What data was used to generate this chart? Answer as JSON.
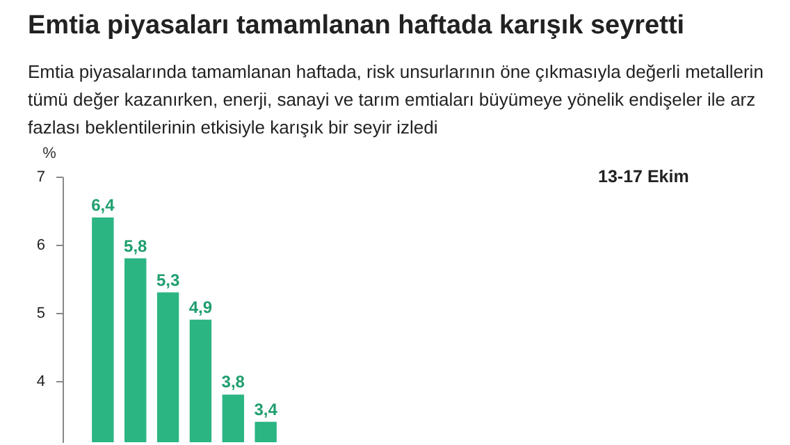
{
  "chart_data": {
    "type": "bar",
    "title": "Emtia piyasaları tamamlanan haftada karışık seyretti",
    "subtitle": "Emtia piyasalarında tamamlanan haftada, risk unsurlarının öne çıkmasıyla değerli metallerin tümü değer kazanırken, enerji, sanayi ve tarım emtiaları büyümeye yönelik endişeler ile arz fazlası beklentilerinin etkisiyle karışık bir seyir izledi",
    "ylabel": "%",
    "annotations": [
      "13-17 Ekim"
    ],
    "categories": [
      null,
      null,
      null,
      null,
      null,
      null
    ],
    "values": [
      6.4,
      5.8,
      5.3,
      4.9,
      3.8,
      3.4
    ],
    "value_labels": [
      "6,4",
      "5,8",
      "5,3",
      "4,9",
      "3,8",
      "3,4"
    ],
    "color": "#2bb583",
    "ylim": [
      3.1,
      7
    ],
    "yticks": [
      4,
      5,
      6,
      7
    ]
  }
}
